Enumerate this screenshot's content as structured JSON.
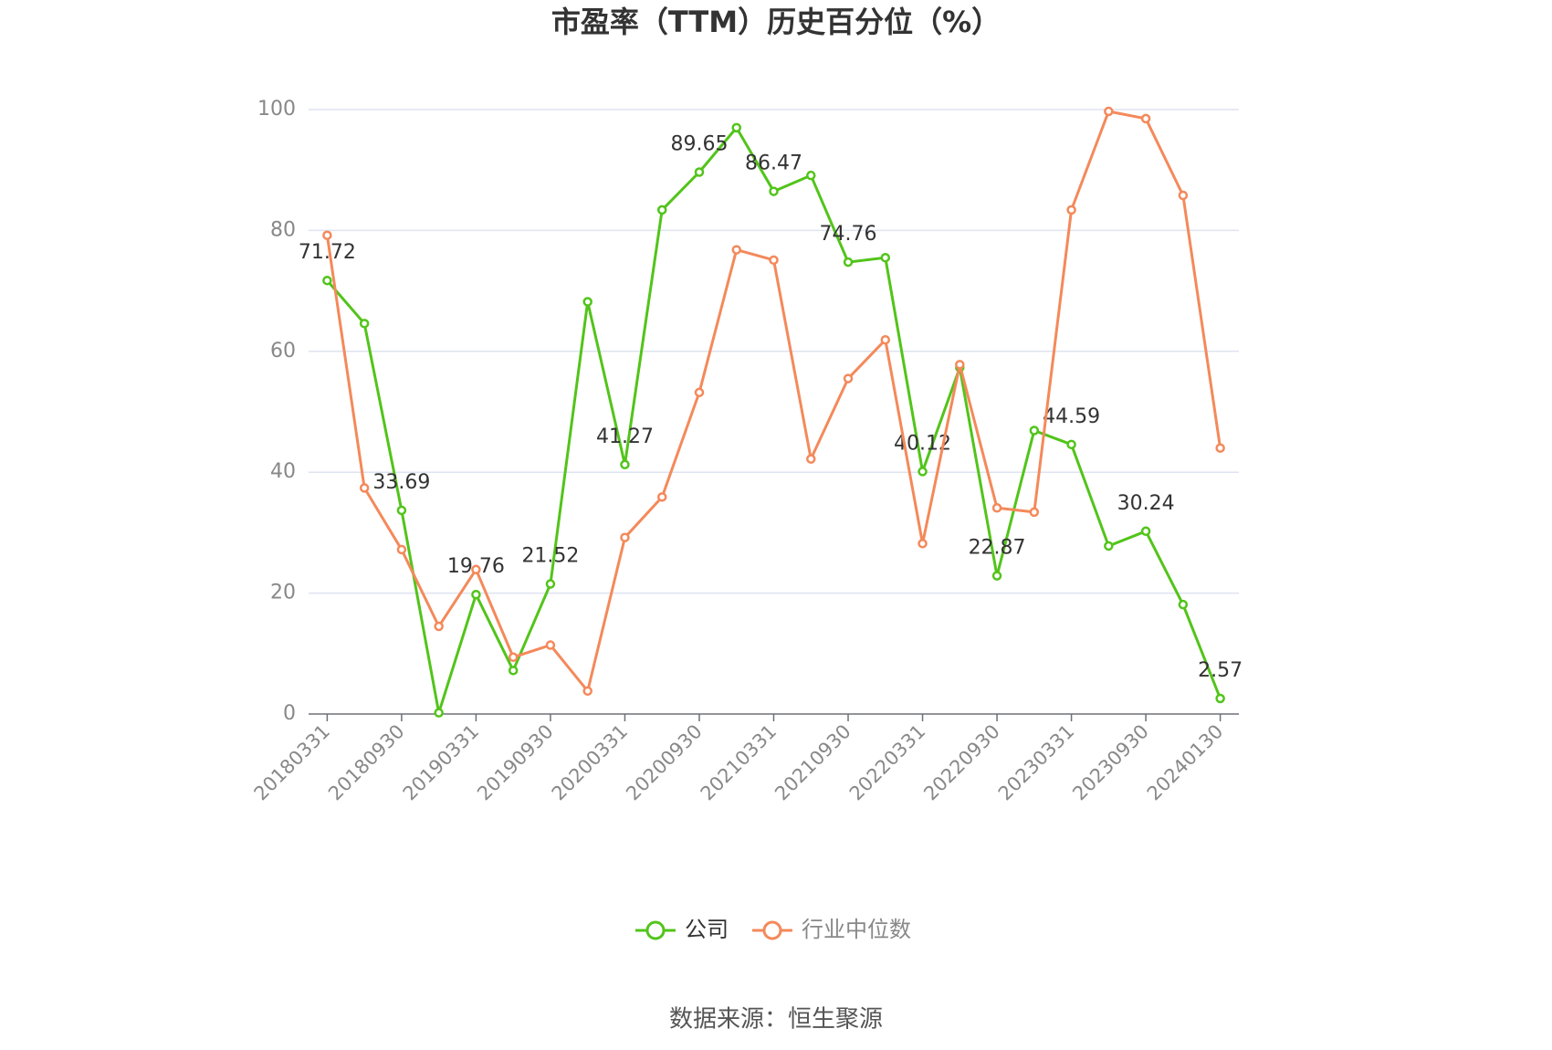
{
  "chart_data": {
    "type": "line",
    "title": "市盈率（TTM）历史百分位（%）",
    "source": "数据来源：恒生聚源",
    "categories": [
      "20180331",
      null,
      "20180930",
      null,
      "20190331",
      null,
      "20190930",
      null,
      "20200331",
      null,
      "20200930",
      null,
      "20210331",
      null,
      "20210930",
      null,
      "20220331",
      null,
      "20220930",
      null,
      "20230331",
      null,
      "20230930",
      null,
      "20240130"
    ],
    "series": [
      {
        "name": "公司",
        "color": "#52c41a",
        "values": [
          71.72,
          64.6,
          33.69,
          0.2,
          19.76,
          7.2,
          21.52,
          68.2,
          41.27,
          83.4,
          89.65,
          97.0,
          86.47,
          89.1,
          74.76,
          75.5,
          40.12,
          57.3,
          22.87,
          46.9,
          44.59,
          27.8,
          30.24,
          18.1,
          2.57
        ],
        "value_labels": [
          "71.72",
          null,
          "33.69",
          null,
          "19.76",
          null,
          "21.52",
          null,
          "41.27",
          null,
          "89.65",
          null,
          "86.47",
          null,
          "74.76",
          null,
          "40.12",
          null,
          "22.87",
          null,
          "44.59",
          null,
          "30.24",
          null,
          "2.57"
        ]
      },
      {
        "name": "行业中位数",
        "color": "#f4895a",
        "values": [
          79.2,
          37.4,
          27.2,
          14.5,
          23.9,
          9.4,
          11.4,
          3.8,
          29.2,
          35.9,
          53.2,
          76.8,
          75.1,
          42.2,
          55.5,
          61.9,
          28.2,
          57.8,
          34.1,
          33.4,
          83.4,
          99.7,
          98.5,
          85.8,
          44.0
        ]
      }
    ],
    "ylim": [
      0,
      100
    ],
    "yticks": [
      0,
      20,
      40,
      60,
      80,
      100
    ],
    "grid": true,
    "legend": "bottom"
  }
}
